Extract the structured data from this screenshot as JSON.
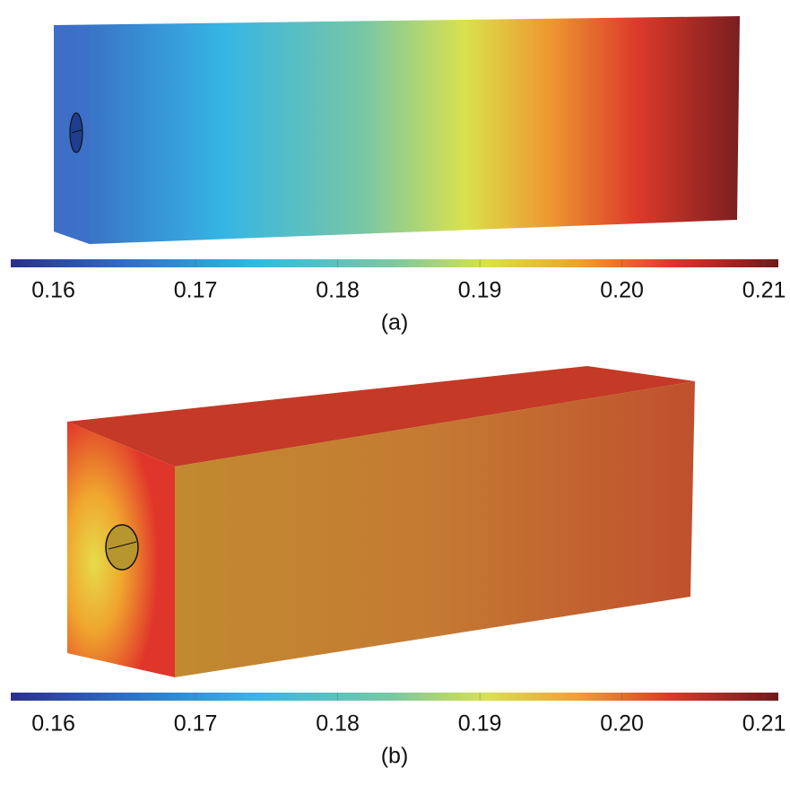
{
  "panels": [
    {
      "caption": "(a)",
      "colorbar": {
        "lim": [
          0.157,
          0.211
        ],
        "ticks": [
          0.16,
          0.17,
          0.18,
          0.19,
          {
            "value": 0.2,
            "label": "0.20"
          },
          0.21
        ]
      }
    },
    {
      "caption": "(b)",
      "colorbar": {
        "lim": [
          0.157,
          0.211
        ],
        "ticks": [
          0.16,
          0.17,
          0.18,
          0.19,
          {
            "value": 0.2,
            "label": "0.20"
          },
          0.21
        ]
      }
    }
  ]
}
